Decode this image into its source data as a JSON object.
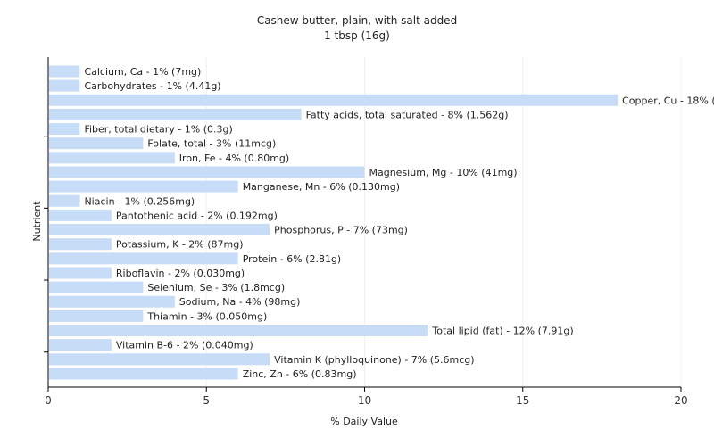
{
  "chart_data": {
    "type": "bar",
    "orientation": "horizontal",
    "title": "Cashew butter, plain, with salt added",
    "subtitle": "1 tbsp (16g)",
    "xlabel": "% Daily Value",
    "ylabel": "Nutrient",
    "xlim": [
      0,
      20
    ],
    "xticks": [
      0,
      5,
      10,
      15,
      20
    ],
    "grid": true,
    "bar_color": "#c6dcf7",
    "categories": [
      "Calcium, Ca",
      "Carbohydrates",
      "Copper, Cu",
      "Fatty acids, total saturated",
      "Fiber, total dietary",
      "Folate, total",
      "Iron, Fe",
      "Magnesium, Mg",
      "Manganese, Mn",
      "Niacin",
      "Pantothenic acid",
      "Phosphorus, P",
      "Potassium, K",
      "Protein",
      "Riboflavin",
      "Selenium, Se",
      "Sodium, Na",
      "Thiamin",
      "Total lipid (fat)",
      "Vitamin B-6",
      "Vitamin K (phylloquinone)",
      "Zinc, Zn"
    ],
    "values": [
      1,
      1,
      18,
      8,
      1,
      3,
      4,
      10,
      6,
      1,
      2,
      7,
      2,
      6,
      2,
      3,
      4,
      3,
      12,
      2,
      7,
      6
    ],
    "labels": [
      "Calcium, Ca - 1% (7mg)",
      "Carbohydrates - 1% (4.41g)",
      "Copper, Cu - 18% (0.350mg)",
      "Fatty acids, total saturated - 8% (1.562g)",
      "Fiber, total dietary - 1% (0.3g)",
      "Folate, total - 3% (11mcg)",
      "Iron, Fe - 4% (0.80mg)",
      "Magnesium, Mg - 10% (41mg)",
      "Manganese, Mn - 6% (0.130mg)",
      "Niacin - 1% (0.256mg)",
      "Pantothenic acid - 2% (0.192mg)",
      "Phosphorus, P - 7% (73mg)",
      "Potassium, K - 2% (87mg)",
      "Protein - 6% (2.81g)",
      "Riboflavin - 2% (0.030mg)",
      "Selenium, Se - 3% (1.8mcg)",
      "Sodium, Na - 4% (98mg)",
      "Thiamin - 3% (0.050mg)",
      "Total lipid (fat) - 12% (7.91g)",
      "Vitamin B-6 - 2% (0.040mg)",
      "Vitamin K (phylloquinone) - 7% (5.6mcg)",
      "Zinc, Zn - 6% (0.83mg)"
    ]
  }
}
